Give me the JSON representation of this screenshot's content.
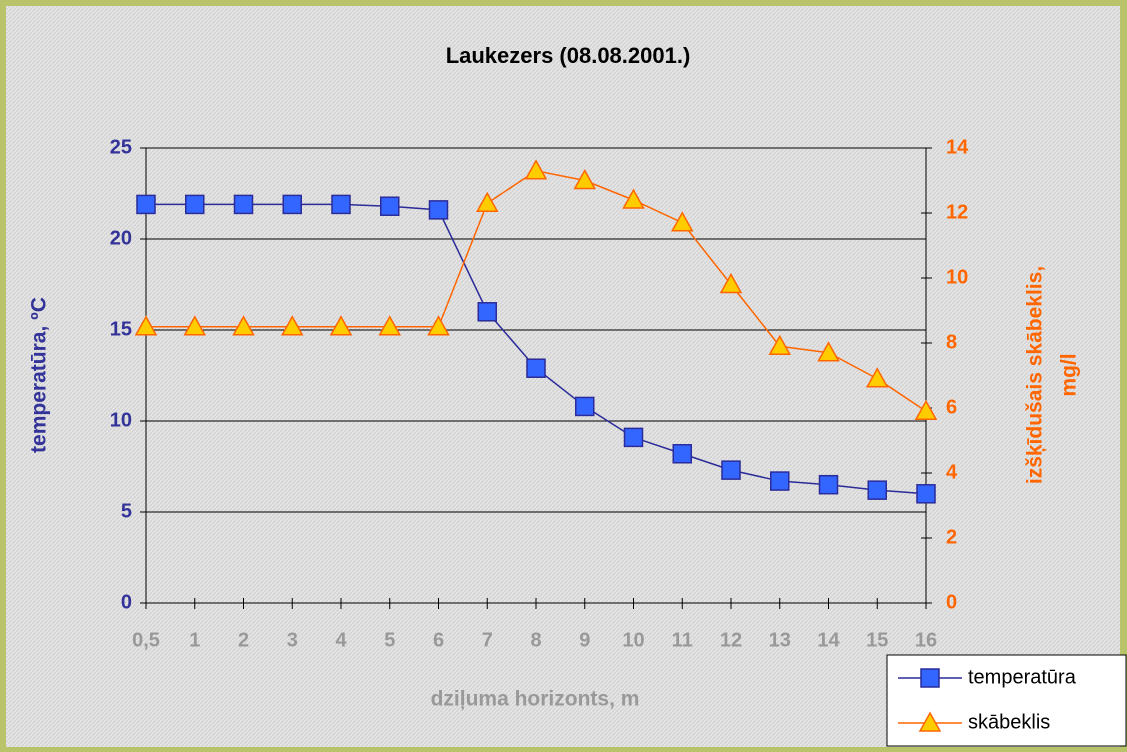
{
  "chart_data": {
    "type": "line",
    "title": "Laukezers (08.08.2001.)",
    "x_label": "dziļuma horizonts, m",
    "y_label": "temperatūra, ºC",
    "y2_label": [
      "izšķīdušais skābeklis,",
      "mg/l"
    ],
    "categories": [
      "0,5",
      "1",
      "2",
      "3",
      "4",
      "5",
      "6",
      "7",
      "8",
      "9",
      "10",
      "11",
      "12",
      "13",
      "14",
      "15",
      "16"
    ],
    "series": [
      {
        "name": "temperatūra",
        "color": "#2b2b99",
        "marker": "square",
        "marker_color": "#3366ff",
        "values": [
          21.9,
          21.9,
          21.9,
          21.9,
          21.9,
          21.8,
          21.6,
          16.0,
          12.9,
          10.8,
          9.1,
          8.2,
          7.3,
          6.7,
          6.5,
          6.2,
          6.0
        ]
      },
      {
        "name": "skābeklis",
        "color": "#ff6600",
        "marker": "triangle",
        "marker_color": "#ffcc00",
        "axis": "y2",
        "values": [
          8.5,
          8.5,
          8.5,
          8.5,
          8.5,
          8.5,
          8.5,
          12.3,
          13.3,
          13.0,
          12.4,
          11.7,
          9.8,
          7.9,
          7.7,
          6.9,
          5.9
        ]
      }
    ],
    "ylim": [
      0,
      25
    ],
    "yticks": [
      0,
      5,
      10,
      15,
      20,
      25
    ],
    "y2lim": [
      0,
      14
    ],
    "y2ticks": [
      0,
      2,
      4,
      6,
      8,
      10,
      12,
      14
    ],
    "grid": true,
    "legend": "lower right"
  }
}
